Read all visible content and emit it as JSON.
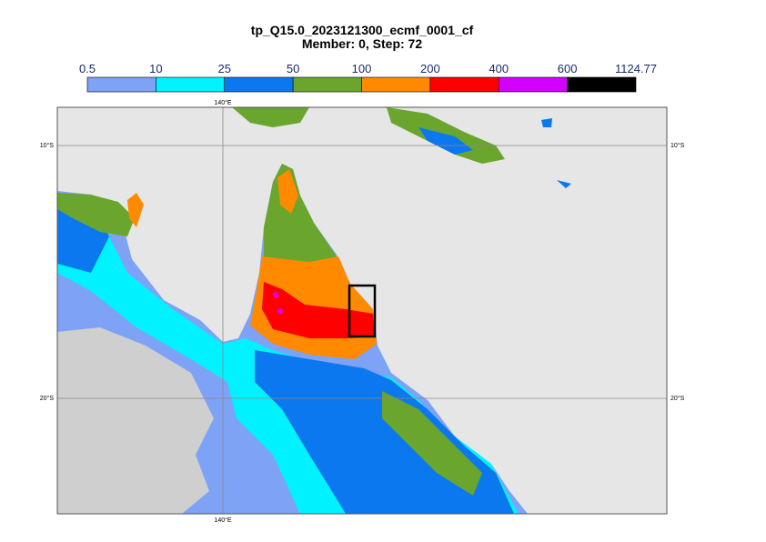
{
  "title": "tp_Q15.0_2023121300_ecmf_0001_cf",
  "subtitle": "Member: 0, Step: 72",
  "colorbar": {
    "levels": [
      0.5,
      10,
      25,
      50,
      100,
      200,
      400,
      600,
      1124.77
    ],
    "colors": [
      "#7da2f6",
      "#00f2ff",
      "#0b78ef",
      "#6aa52e",
      "#ff8a00",
      "#ff0000",
      "#d400ff",
      "#000000"
    ]
  },
  "map": {
    "lon_labels": [
      "140°E"
    ],
    "lat_labels": [
      "10°S",
      "20°S"
    ]
  }
}
